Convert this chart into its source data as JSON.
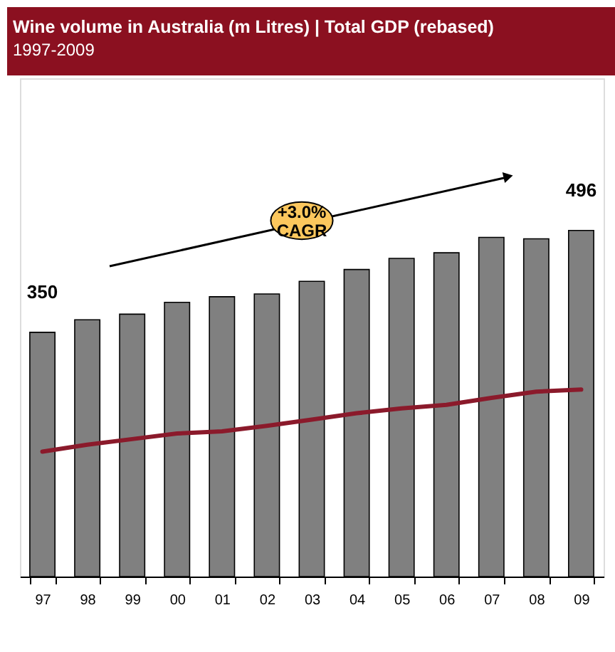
{
  "chart_data": {
    "type": "bar",
    "title": "Wine volume in Australia (m Litres) | Total GDP (rebased)",
    "subtitle": "1997-2009",
    "categories": [
      "97",
      "98",
      "99",
      "00",
      "01",
      "02",
      "03",
      "04",
      "05",
      "06",
      "07",
      "08",
      "09"
    ],
    "series": [
      {
        "color": "#808080",
        "values": [
          350,
          368,
          376,
          393,
          401,
          405,
          423,
          440,
          456,
          464,
          486,
          484,
          496
        ],
        "value_labels": [
          "350",
          null,
          null,
          null,
          null,
          null,
          null,
          null,
          null,
          null,
          null,
          null,
          "496"
        ]
      },
      {
        "type": "line",
        "color": "#8b1a2b",
        "values": [
          179,
          189,
          197,
          205,
          208,
          216,
          225,
          234,
          241,
          246,
          256,
          265,
          268
        ]
      }
    ],
    "ylim": [
      0,
      714
    ],
    "tick_labels": "x",
    "grid": false,
    "annotations": [
      "+3.0% CAGR"
    ]
  }
}
